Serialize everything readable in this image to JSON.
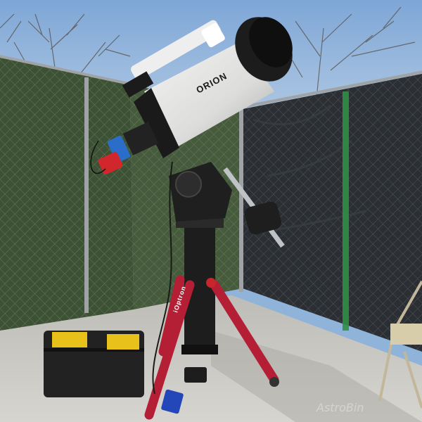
{
  "photo": {
    "telescope_brand": "ORION",
    "tripod_brand": "iOptron",
    "watermark": "AstroBin"
  },
  "palette": {
    "sky": "#8fb3d9",
    "fence_screen": "#3d5234",
    "tarp": "#2b2f33",
    "tube": "#e8e8e6",
    "tube_cap": "#1c1c1c",
    "tripod": "#b51f35",
    "case": "#222222",
    "case_latch": "#e8c11a",
    "ground": "#c9c8c3"
  }
}
